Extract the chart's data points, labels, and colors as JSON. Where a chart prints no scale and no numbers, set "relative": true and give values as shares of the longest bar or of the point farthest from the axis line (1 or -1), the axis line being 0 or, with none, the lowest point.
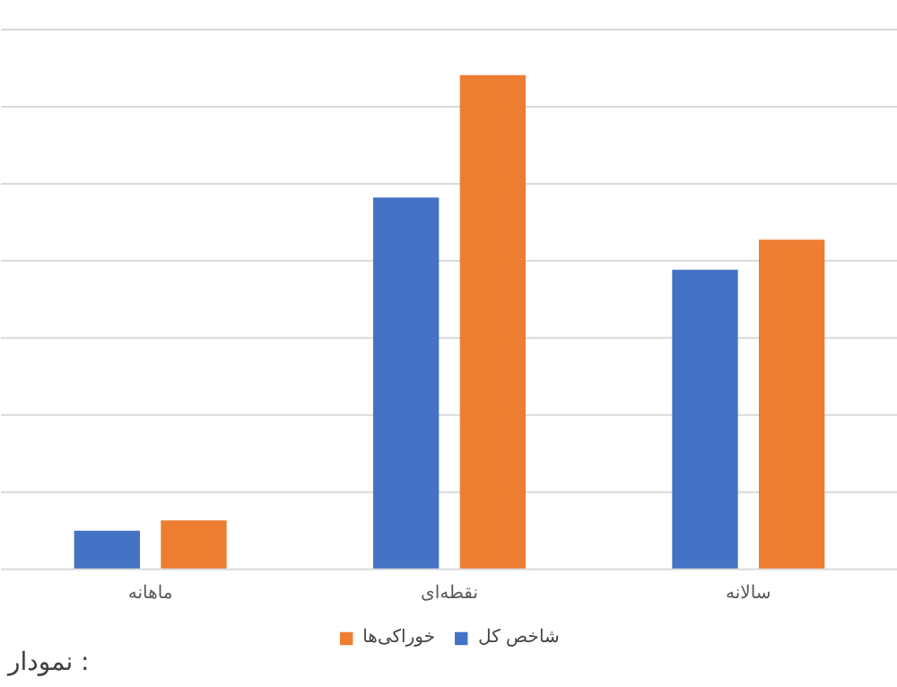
{
  "chart_data": {
    "type": "bar",
    "relative": true,
    "categories": [
      "ماهانه",
      "نقطه‌ای",
      "سالانه"
    ],
    "series": [
      {
        "name": "شاخص کل",
        "color": "#4472c4",
        "values": [
          0.078,
          0.752,
          0.606
        ]
      },
      {
        "name": "خوراکی‌ها",
        "color": "#ed7d31",
        "values": [
          0.099,
          1.0,
          0.667
        ]
      }
    ],
    "grid": "y",
    "legend": "bottom",
    "annotations": [
      "نمودار :"
    ]
  }
}
